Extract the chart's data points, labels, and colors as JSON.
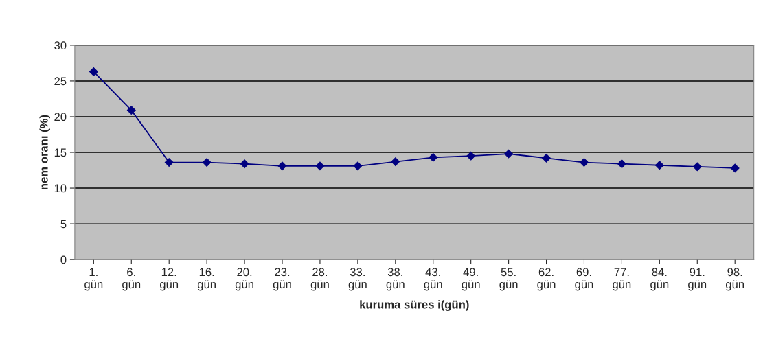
{
  "chart_data": {
    "type": "line",
    "xlabel": "kuruma süres i(gün)",
    "ylabel": "nem oranı (%)",
    "categories": [
      "1.\ngün",
      "6.\ngün",
      "12.\ngün",
      "16.\ngün",
      "20.\ngün",
      "23.\ngün",
      "28.\ngün",
      "33.\ngün",
      "38.\ngün",
      "43.\ngün",
      "49.\ngün",
      "55.\ngün",
      "62.\ngün",
      "69.\ngün",
      "77.\ngün",
      "84.\ngün",
      "91.\ngün",
      "98.\ngün"
    ],
    "series": [
      {
        "color": "#000080",
        "values": [
          26.3,
          20.9,
          13.6,
          13.6,
          13.4,
          13.1,
          13.1,
          13.1,
          13.7,
          14.3,
          14.5,
          14.8,
          14.2,
          13.6,
          13.4,
          13.2,
          13.0,
          12.8
        ]
      }
    ],
    "ylim": [
      0,
      30
    ],
    "yticks": [
      0,
      5,
      10,
      15,
      20,
      25,
      30
    ],
    "grid": "y",
    "marker": "diamond",
    "line_style": "solid",
    "legend": false
  }
}
